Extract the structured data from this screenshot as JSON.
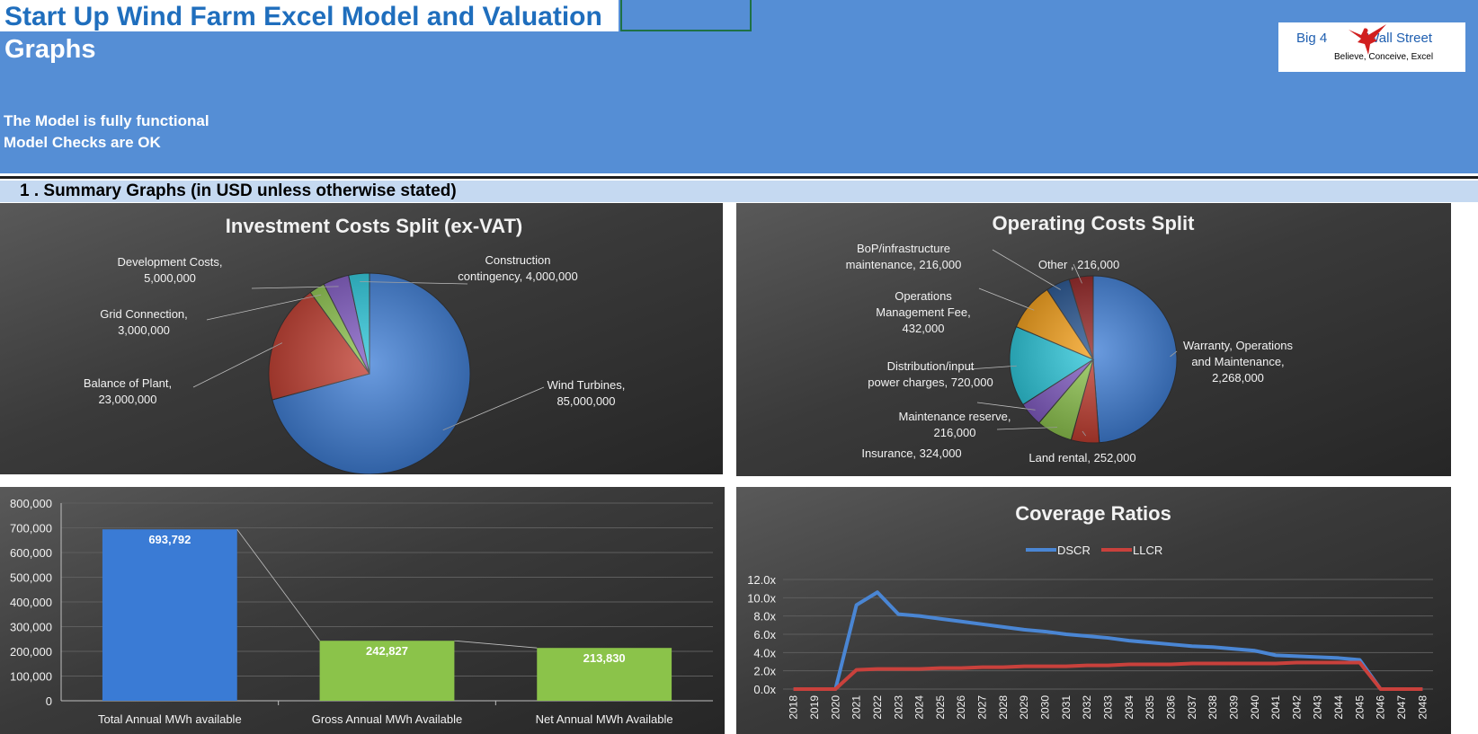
{
  "header": {
    "title": "Start Up Wind Farm Excel Model and Valuation",
    "subtitle": "Graphs",
    "status_lines": [
      "The Model is fully functional",
      "Model Checks are OK"
    ],
    "logo": {
      "brand_left": "Big 4",
      "brand_right": "Wall Street",
      "tagline": "Believe, Conceive, Excel"
    },
    "colors": {
      "band": "#558ed5",
      "title": "#1f6ebd"
    }
  },
  "section": {
    "title": "1 . Summary Graphs (in USD unless otherwise stated)"
  },
  "chart_data": [
    {
      "type": "pie",
      "title": "Investment Costs Split (ex-VAT)",
      "slices": [
        {
          "name": "Wind Turbines",
          "value": 85000000,
          "label": [
            "Wind Turbines,",
            "85,000,000"
          ],
          "color": "#3a7bd5"
        },
        {
          "name": "Balance of Plant",
          "value": 23000000,
          "label": [
            "Balance of Plant,",
            "23,000,000"
          ],
          "color": "#c0392b"
        },
        {
          "name": "Grid Connection",
          "value": 3000000,
          "label": [
            "Grid Connection,",
            "3,000,000"
          ],
          "color": "#8bc34a"
        },
        {
          "name": "Development Costs",
          "value": 5000000,
          "label": [
            "Development Costs,",
            "5,000,000"
          ],
          "color": "#7e57c2"
        },
        {
          "name": "Construction contingency",
          "value": 4000000,
          "label": [
            "Construction",
            "contingency, 4,000,000"
          ],
          "color": "#26c6da"
        }
      ]
    },
    {
      "type": "pie",
      "title": "Operating Costs Split",
      "slices": [
        {
          "name": "Warranty, Operations and Maintenance",
          "value": 2268000,
          "label": [
            "Warranty, Operations",
            "and Maintenance,",
            "2,268,000"
          ],
          "color": "#3a7bd5"
        },
        {
          "name": "Land rental",
          "value": 252000,
          "label": [
            "Land rental, 252,000"
          ],
          "color": "#c0392b"
        },
        {
          "name": "Insurance",
          "value": 324000,
          "label": [
            "Insurance, 324,000"
          ],
          "color": "#8bc34a"
        },
        {
          "name": "Maintenance reserve",
          "value": 216000,
          "label": [
            "Maintenance reserve,",
            "216,000"
          ],
          "color": "#7e57c2"
        },
        {
          "name": "Distribution/input power charges",
          "value": 720000,
          "label": [
            "Distribution/input",
            "power charges, 720,000"
          ],
          "color": "#26c6da"
        },
        {
          "name": "Operations Management Fee",
          "value": 432000,
          "label": [
            "Operations",
            "Management Fee,",
            "432,000"
          ],
          "color": "#f39c12"
        },
        {
          "name": "BoP/infrastructure maintenance",
          "value": 216000,
          "label": [
            "BoP/infrastructure",
            "maintenance, 216,000"
          ],
          "color": "#1f4e8c"
        },
        {
          "name": "Other",
          "value": 216000,
          "label": [
            "Other , 216,000"
          ],
          "color": "#8e1c1c"
        }
      ]
    },
    {
      "type": "bar",
      "title": "",
      "categories": [
        "Total Annual MWh available",
        "Gross Annual MWh Available",
        "Net Annual MWh Available"
      ],
      "values": [
        693792,
        242827,
        213830
      ],
      "value_labels": [
        "693,792",
        "242,827",
        "213,830"
      ],
      "ylim": [
        0,
        800000
      ],
      "yticks": [
        "0",
        "100,000",
        "200,000",
        "300,000",
        "400,000",
        "500,000",
        "600,000",
        "700,000",
        "800,000"
      ],
      "colors": [
        "#3a7bd5",
        "#8bc34a",
        "#8bc34a"
      ],
      "grid": true
    },
    {
      "type": "line",
      "title": "Coverage Ratios",
      "x": [
        "2018",
        "2019",
        "2020",
        "2021",
        "2022",
        "2023",
        "2024",
        "2025",
        "2026",
        "2027",
        "2028",
        "2029",
        "2030",
        "2031",
        "2032",
        "2033",
        "2034",
        "2035",
        "2036",
        "2037",
        "2038",
        "2039",
        "2040",
        "2041",
        "2042",
        "2043",
        "2044",
        "2045",
        "2046",
        "2047",
        "2048"
      ],
      "series": [
        {
          "name": "DSCR",
          "color": "#4a86d4",
          "values": [
            0,
            0,
            0,
            9.2,
            10.6,
            8.2,
            8.0,
            7.7,
            7.4,
            7.1,
            6.8,
            6.5,
            6.3,
            6.0,
            5.8,
            5.6,
            5.3,
            5.1,
            4.9,
            4.7,
            4.6,
            4.4,
            4.2,
            3.7,
            3.6,
            3.5,
            3.4,
            3.2,
            0,
            0,
            0
          ]
        },
        {
          "name": "LLCR",
          "color": "#c9413c",
          "values": [
            0,
            0,
            0,
            2.1,
            2.2,
            2.2,
            2.2,
            2.3,
            2.3,
            2.4,
            2.4,
            2.5,
            2.5,
            2.5,
            2.6,
            2.6,
            2.7,
            2.7,
            2.7,
            2.8,
            2.8,
            2.8,
            2.8,
            2.8,
            2.9,
            2.9,
            2.9,
            2.9,
            0,
            0,
            0
          ]
        }
      ],
      "ylim": [
        0,
        12
      ],
      "yticks": [
        "0.0x",
        "2.0x",
        "4.0x",
        "6.0x",
        "8.0x",
        "10.0x",
        "12.0x"
      ],
      "legend": "top",
      "grid": true
    }
  ]
}
